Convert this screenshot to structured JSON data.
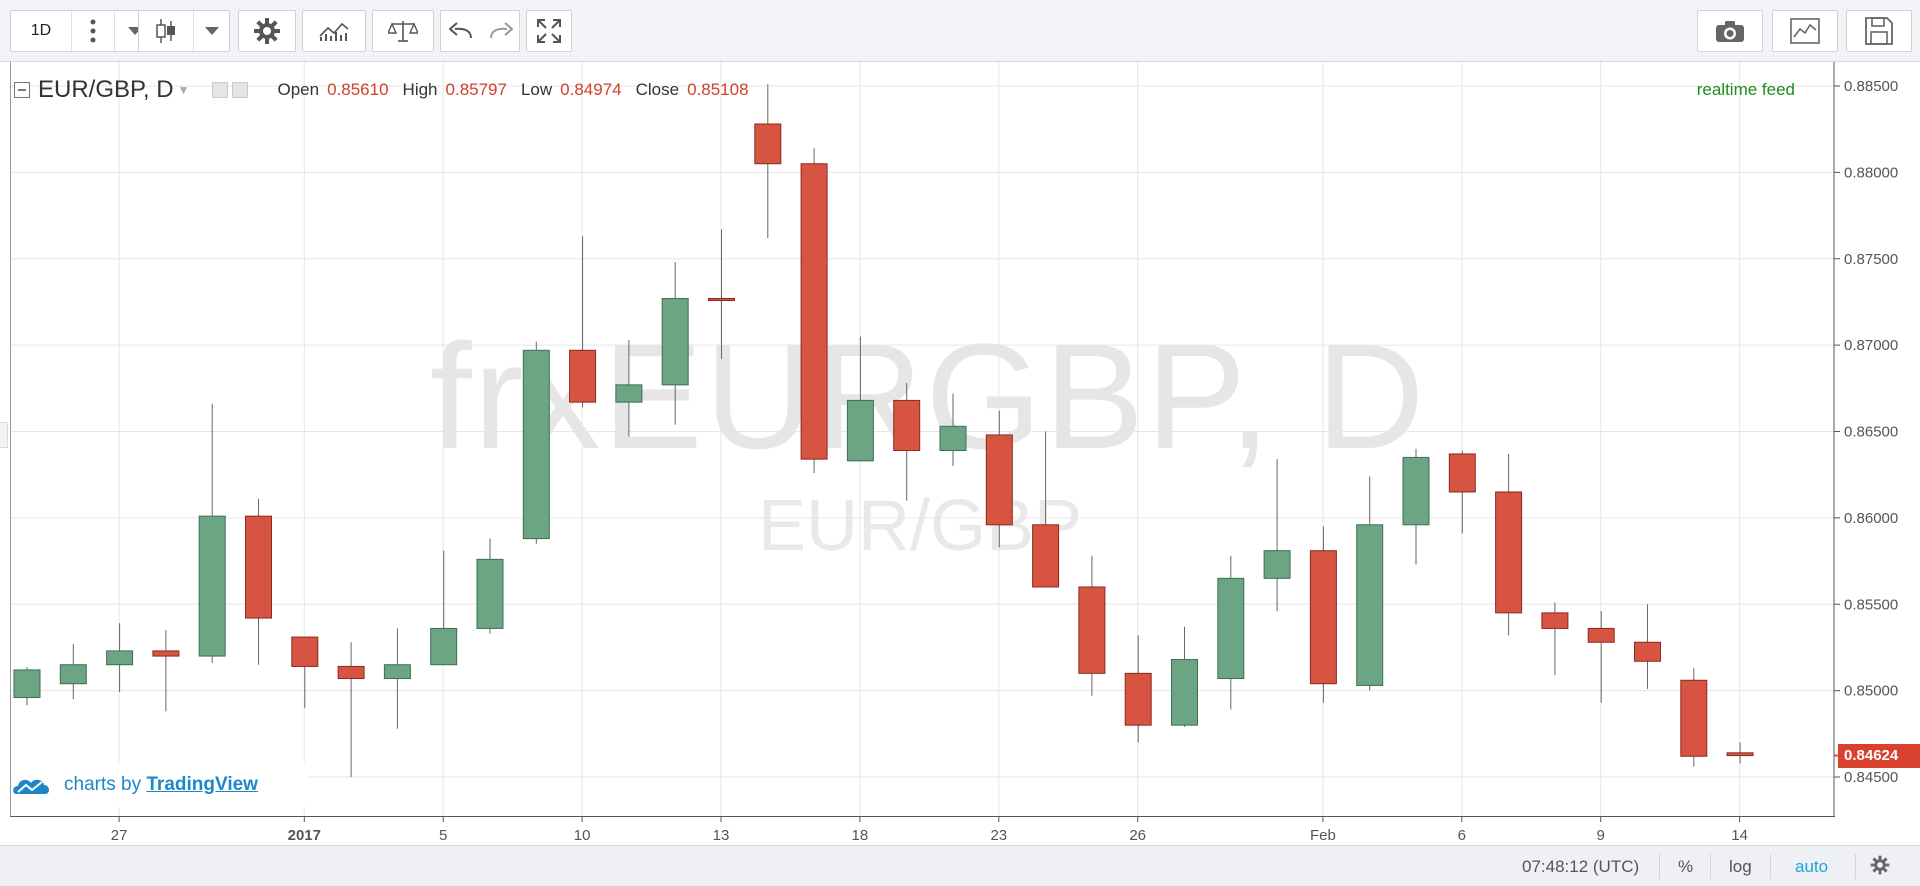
{
  "toolbar": {
    "interval_label": "1D",
    "buttons": [
      "more-icon",
      "dropdown-arrow-icon",
      "candlestick-icon",
      "chart-style-dropdown-icon",
      "gear-icon",
      "indicators-icon",
      "compare-icon",
      "undo-icon",
      "redo-icon",
      "fullscreen-icon",
      "camera-icon",
      "chart-properties-icon",
      "save-icon"
    ]
  },
  "legend": {
    "symbol": "EUR/GBP, D",
    "open_label": "Open",
    "open_value": "0.85610",
    "high_label": "High",
    "high_value": "0.85797",
    "low_label": "Low",
    "low_value": "0.84974",
    "close_label": "Close",
    "close_value": "0.85108"
  },
  "realtime_label": "realtime feed",
  "watermark": {
    "main": "frxEURGBP, D",
    "sub": "EUR/GBP"
  },
  "attribution": {
    "prefix": "charts by ",
    "brand": "TradingView"
  },
  "last_price": "0.84624",
  "bottom_bar": {
    "time": "07:48:12 (UTC)",
    "percent": "%",
    "log": "log",
    "auto": "auto"
  },
  "colors": {
    "up": "#6ba583",
    "down": "#d75442",
    "accent": "#1e88c7",
    "realtime": "#1e8e1e"
  },
  "chart_data": {
    "type": "candlestick",
    "title": "EUR/GBP, D",
    "ylim": [
      0.8439,
      0.8883
    ],
    "y_ticks": [
      "0.88500",
      "0.88000",
      "0.87500",
      "0.87000",
      "0.86500",
      "0.86000",
      "0.85500",
      "0.85000",
      "0.84500"
    ],
    "x_tick_labels": [
      {
        "i": 2,
        "label": "27"
      },
      {
        "i": 6,
        "label": "2017"
      },
      {
        "i": 9,
        "label": "5"
      },
      {
        "i": 12,
        "label": "10"
      },
      {
        "i": 15,
        "label": "13"
      },
      {
        "i": 18,
        "label": "18"
      },
      {
        "i": 21,
        "label": "23"
      },
      {
        "i": 24,
        "label": "26"
      },
      {
        "i": 28,
        "label": "Feb"
      },
      {
        "i": 31,
        "label": "6"
      },
      {
        "i": 34,
        "label": "9"
      },
      {
        "i": 37,
        "label": "14"
      }
    ],
    "candles": [
      {
        "o": 0.8496,
        "h": 0.85135,
        "l": 0.84915,
        "c": 0.8512
      },
      {
        "o": 0.8504,
        "h": 0.8527,
        "l": 0.8495,
        "c": 0.8515
      },
      {
        "o": 0.8515,
        "h": 0.8539,
        "l": 0.8499,
        "c": 0.8523
      },
      {
        "o": 0.8523,
        "h": 0.8535,
        "l": 0.8488,
        "c": 0.852
      },
      {
        "o": 0.852,
        "h": 0.8666,
        "l": 0.8516,
        "c": 0.8601
      },
      {
        "o": 0.8601,
        "h": 0.8611,
        "l": 0.8515,
        "c": 0.8542
      },
      {
        "o": 0.8531,
        "h": 0.8531,
        "l": 0.849,
        "c": 0.8514
      },
      {
        "o": 0.8514,
        "h": 0.8528,
        "l": 0.845,
        "c": 0.8507
      },
      {
        "o": 0.8507,
        "h": 0.8536,
        "l": 0.8478,
        "c": 0.8515
      },
      {
        "o": 0.8515,
        "h": 0.8581,
        "l": 0.8515,
        "c": 0.8536
      },
      {
        "o": 0.8536,
        "h": 0.8588,
        "l": 0.8533,
        "c": 0.8576
      },
      {
        "o": 0.8588,
        "h": 0.8702,
        "l": 0.8585,
        "c": 0.8697
      },
      {
        "o": 0.8697,
        "h": 0.8763,
        "l": 0.8664,
        "c": 0.8667
      },
      {
        "o": 0.8667,
        "h": 0.8703,
        "l": 0.8647,
        "c": 0.8677
      },
      {
        "o": 0.8677,
        "h": 0.8748,
        "l": 0.8654,
        "c": 0.8727
      },
      {
        "o": 0.8727,
        "h": 0.8767,
        "l": 0.8692,
        "c": 0.8726
      },
      {
        "o": 0.8828,
        "h": 0.8851,
        "l": 0.8762,
        "c": 0.8805
      },
      {
        "o": 0.8805,
        "h": 0.8814,
        "l": 0.8626,
        "c": 0.8634
      },
      {
        "o": 0.8633,
        "h": 0.8705,
        "l": 0.8633,
        "c": 0.8668
      },
      {
        "o": 0.8668,
        "h": 0.8678,
        "l": 0.861,
        "c": 0.8639
      },
      {
        "o": 0.8639,
        "h": 0.8672,
        "l": 0.863,
        "c": 0.8653
      },
      {
        "o": 0.8648,
        "h": 0.8662,
        "l": 0.8583,
        "c": 0.8596
      },
      {
        "o": 0.8596,
        "h": 0.865,
        "l": 0.856,
        "c": 0.856
      },
      {
        "o": 0.856,
        "h": 0.8578,
        "l": 0.8497,
        "c": 0.851
      },
      {
        "o": 0.851,
        "h": 0.8532,
        "l": 0.847,
        "c": 0.848
      },
      {
        "o": 0.848,
        "h": 0.8537,
        "l": 0.8479,
        "c": 0.8518
      },
      {
        "o": 0.8507,
        "h": 0.8578,
        "l": 0.8489,
        "c": 0.8565
      },
      {
        "o": 0.8565,
        "h": 0.8634,
        "l": 0.8546,
        "c": 0.8581
      },
      {
        "o": 0.8581,
        "h": 0.8595,
        "l": 0.8493,
        "c": 0.8504
      },
      {
        "o": 0.8503,
        "h": 0.8624,
        "l": 0.85,
        "c": 0.8596
      },
      {
        "o": 0.8596,
        "h": 0.864,
        "l": 0.8573,
        "c": 0.8635
      },
      {
        "o": 0.8637,
        "h": 0.8639,
        "l": 0.8591,
        "c": 0.8615
      },
      {
        "o": 0.8615,
        "h": 0.8637,
        "l": 0.8532,
        "c": 0.8545
      },
      {
        "o": 0.8545,
        "h": 0.8551,
        "l": 0.8509,
        "c": 0.8536
      },
      {
        "o": 0.8536,
        "h": 0.8546,
        "l": 0.8493,
        "c": 0.8528
      },
      {
        "o": 0.8528,
        "h": 0.855,
        "l": 0.8501,
        "c": 0.8517
      },
      {
        "o": 0.8506,
        "h": 0.8513,
        "l": 0.8456,
        "c": 0.8462
      },
      {
        "o": 0.8464,
        "h": 0.847,
        "l": 0.8458,
        "c": 0.84624
      }
    ]
  }
}
